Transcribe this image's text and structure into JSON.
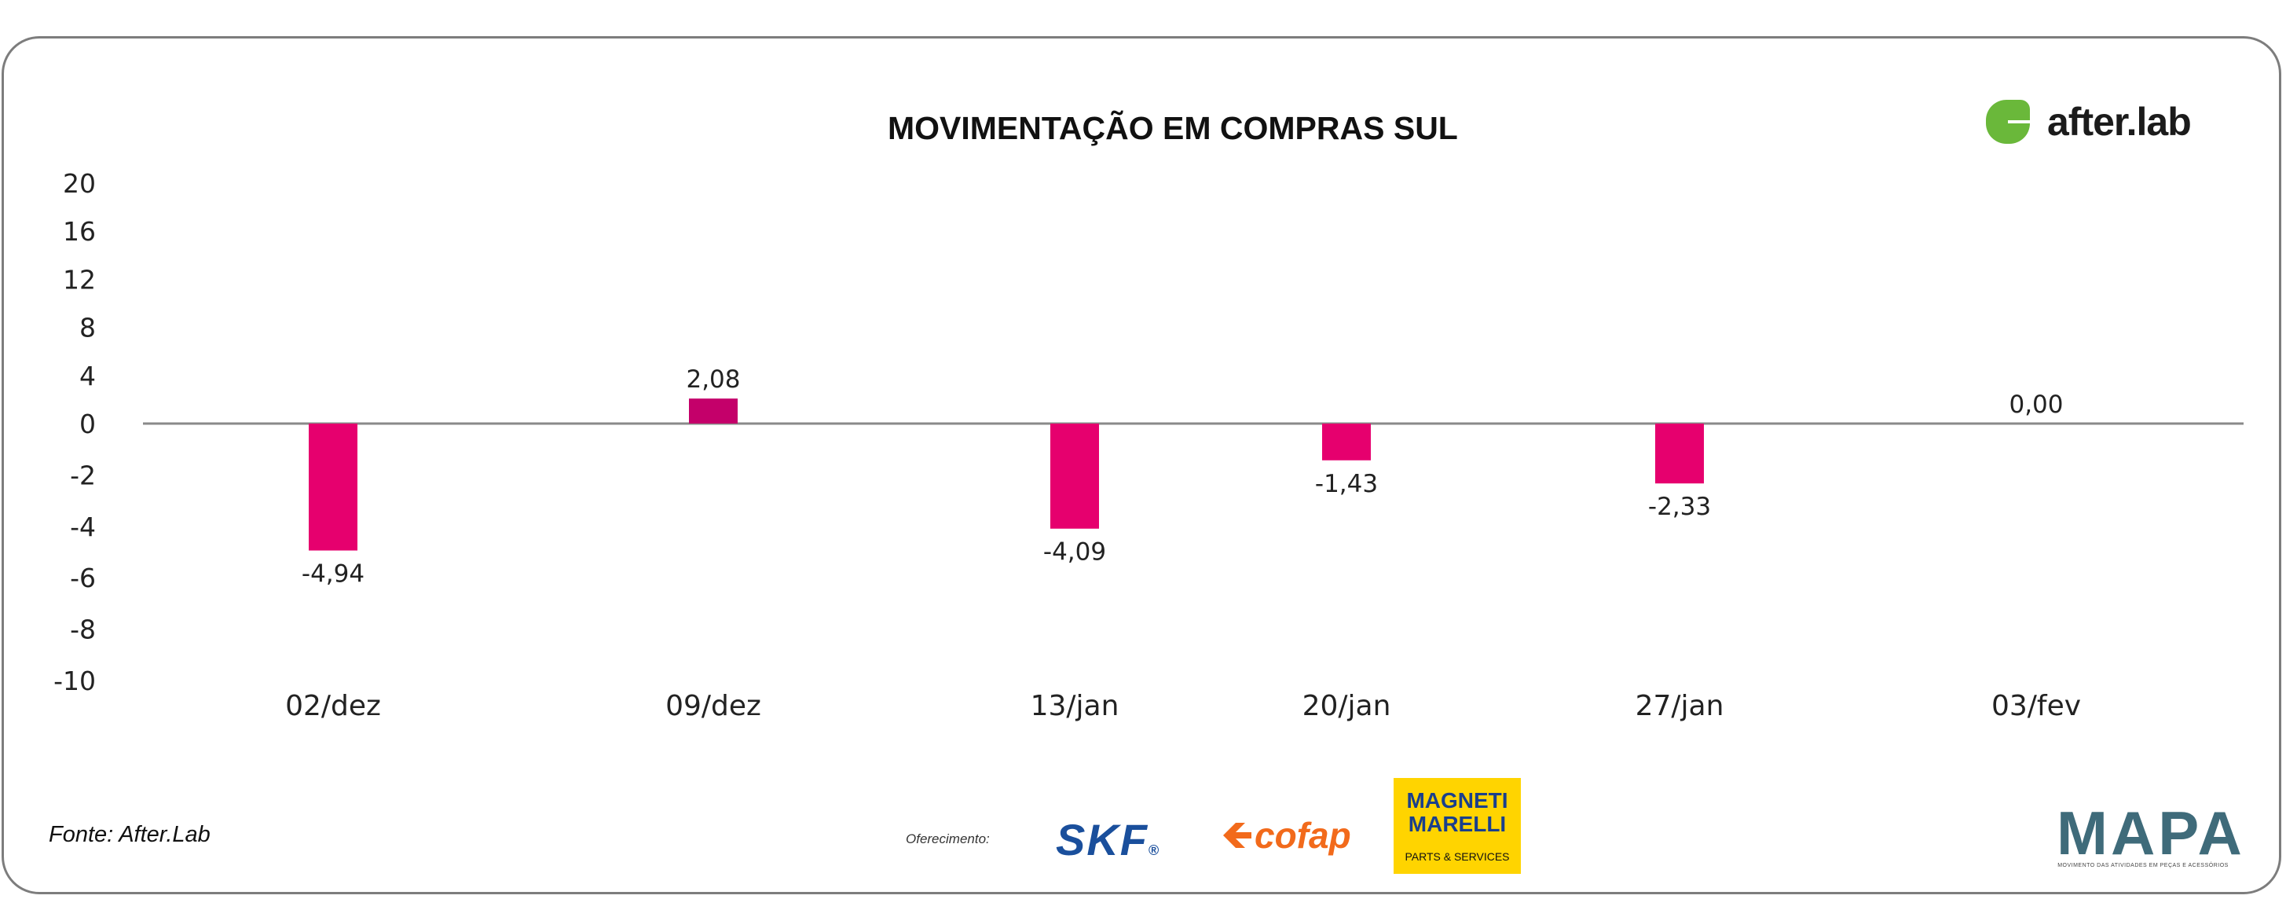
{
  "chart_data": {
    "type": "bar",
    "title": "MOVIMENTAÇÃO EM COMPRAS SUL",
    "categories": [
      "02/dez",
      "09/dez",
      "13/jan",
      "20/jan",
      "27/jan",
      "03/fev"
    ],
    "values": [
      -4.94,
      2.08,
      -4.09,
      -1.43,
      -2.33,
      0.0
    ],
    "value_labels": [
      "-4,94",
      "2,08",
      "-4,09",
      "-1,43",
      "-2,33",
      "0,00"
    ],
    "ylim": [
      -10,
      20
    ],
    "yticks": [
      "20",
      "16",
      "12",
      "8",
      "4",
      "0",
      "-2",
      "-4",
      "-6",
      "-8",
      "-10"
    ],
    "xlabel": "",
    "ylabel": "",
    "bar_color": "#e6006e",
    "bar_color_positive": "#c4006a"
  },
  "footer": {
    "source": "Fonte: After.Lab",
    "offer_label": "Oferecimento:"
  },
  "brands": {
    "afterlab": "after.lab",
    "skf": "SKF",
    "skf_mark": "®",
    "cofap": "cofap",
    "magneti_line1": "MAGNETI",
    "magneti_line2": "MARELLI",
    "magneti_tag": "PARTS & SERVICES",
    "mapa": "MAPA",
    "mapa_tag": "MOVIMENTO DAS ATIVIDADES EM PEÇAS E ACESSÓRIOS"
  },
  "colors": {
    "afterlab_green": "#6ab83a",
    "axis": "#8a8a8a"
  }
}
